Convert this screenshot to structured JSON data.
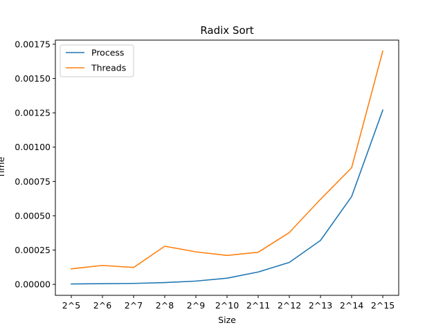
{
  "chart_data": {
    "type": "line",
    "title": "Radix Sort",
    "xlabel": "Size",
    "ylabel": "Time",
    "categories": [
      "2^5",
      "2^6",
      "2^7",
      "2^8",
      "2^9",
      "2^10",
      "2^11",
      "2^12",
      "2^13",
      "2^14",
      "2^15"
    ],
    "series": [
      {
        "name": "Process",
        "color": "#1f77b4",
        "values": [
          3e-06,
          5e-06,
          7e-06,
          1.3e-05,
          2.4e-05,
          4.5e-05,
          9e-05,
          0.00016,
          0.00032,
          0.00064,
          0.00127
        ]
      },
      {
        "name": "Threads",
        "color": "#ff7f0e",
        "values": [
          0.000113,
          0.000138,
          0.000123,
          0.000278,
          0.000237,
          0.000211,
          0.000234,
          0.000378,
          0.00062,
          0.00085,
          0.0017
        ]
      }
    ],
    "ylim": [
      -8e-05,
      0.00178
    ],
    "yticks": [
      0.0,
      0.00025,
      0.0005,
      0.00075,
      0.001,
      0.00125,
      0.0015,
      0.00175
    ],
    "ytick_labels": [
      "0.00000",
      "0.00025",
      "0.00050",
      "0.00075",
      "0.00100",
      "0.00125",
      "0.00150",
      "0.00175"
    ],
    "legend_position": "top-left",
    "grid": false
  }
}
